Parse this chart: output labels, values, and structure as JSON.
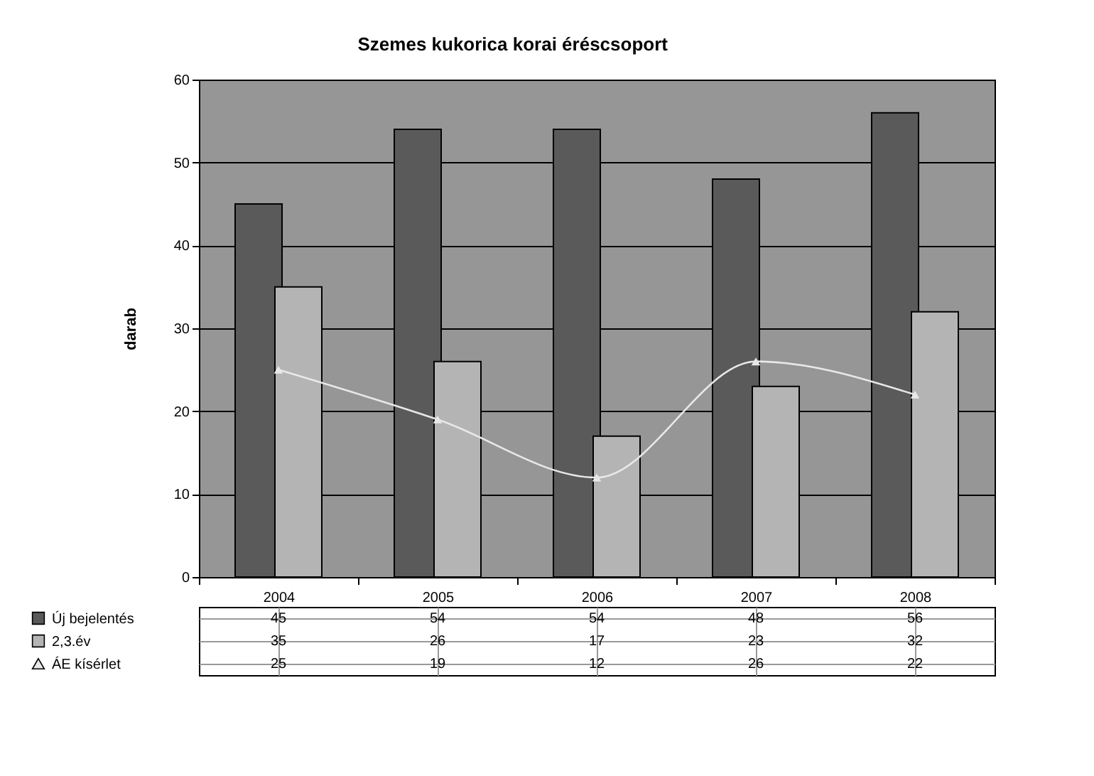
{
  "chart_data": {
    "type": "bar",
    "title": "Szemes kukorica korai éréscsoport",
    "ylabel": "darab",
    "categories": [
      "2004",
      "2005",
      "2006",
      "2007",
      "2008"
    ],
    "series": [
      {
        "name": "Új bejelentés",
        "color": "#5a5a5a",
        "values": [
          45,
          54,
          54,
          48,
          56
        ]
      },
      {
        "name": "2,3.év",
        "color": "#b4b4b4",
        "values": [
          35,
          26,
          17,
          23,
          32
        ]
      },
      {
        "name": "ÁE kísérlet",
        "type": "line",
        "color": "#e8e8e8",
        "marker": "triangle",
        "values": [
          25,
          19,
          12,
          26,
          22
        ]
      }
    ],
    "ylim": [
      0,
      60
    ],
    "yticks": [
      0,
      10,
      20,
      30,
      40,
      50,
      60
    ],
    "grid": "y",
    "legend": "bottom",
    "data_labels": true
  }
}
